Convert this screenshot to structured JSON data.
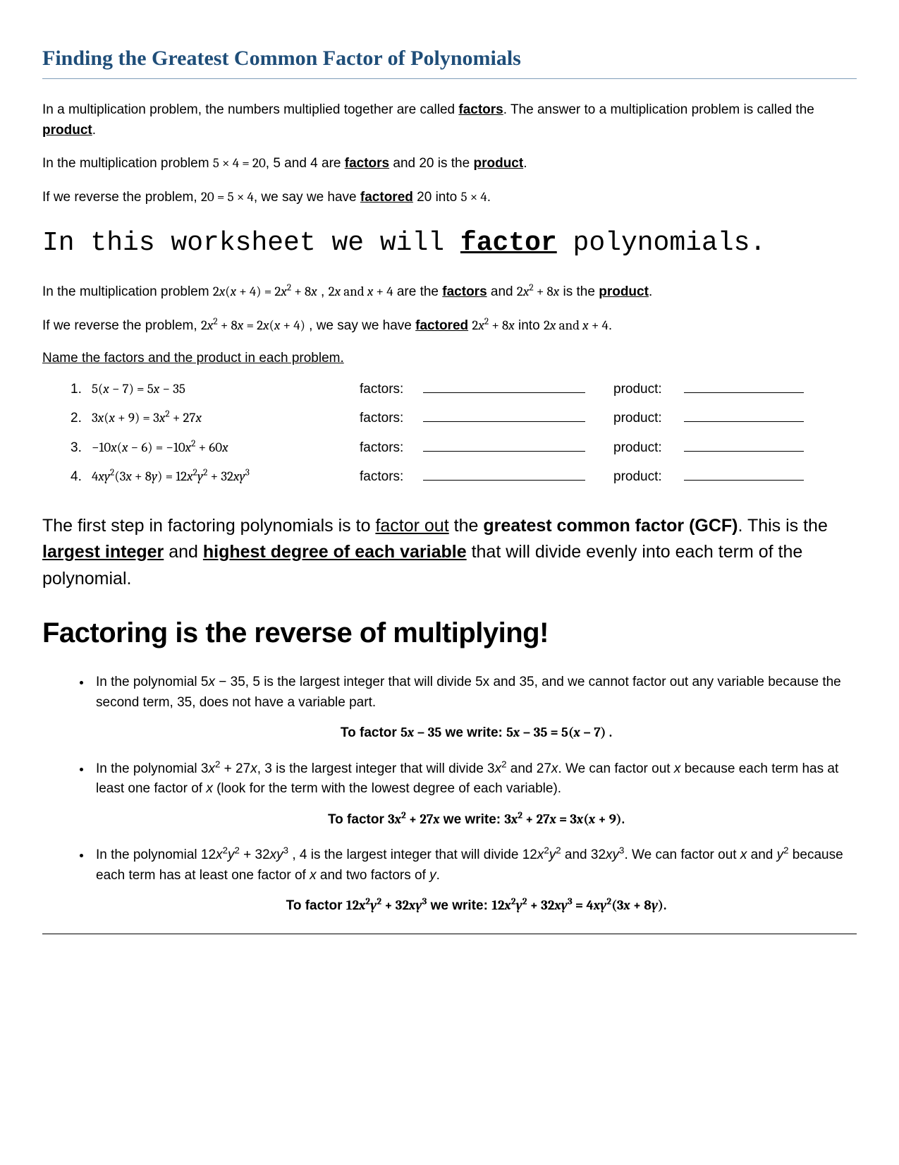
{
  "title": "Finding the Greatest Common Factor of Polynomials",
  "colors": {
    "title": "#1f4e79",
    "title_rule": "#7f9db9",
    "text": "#000000",
    "bg": "#ffffff"
  },
  "typography": {
    "title_font": "Comic Sans MS",
    "title_size_pt": 22,
    "body_font": "Century Gothic",
    "body_size_pt": 14,
    "big_line_font": "American Typewriter",
    "big_line_size_pt": 28,
    "shout_font": "Arial",
    "shout_size_pt": 30
  },
  "p1_a": "In a multiplication problem, the numbers multiplied together are called ",
  "p1_factors": "factors",
  "p1_b": ".  The answer to a multiplication problem is called the ",
  "p1_product": "product",
  "p1_c": ".",
  "p2_a": "In the multiplication problem  ",
  "p2_math": "5 × 4 = 20",
  "p2_b": ", 5 and 4 are ",
  "p2_factors": "factors",
  "p2_c": " and 20 is the ",
  "p2_product": "product",
  "p2_d": ".",
  "p3_a": "If we reverse the problem, ",
  "p3_math": "20 = 5 × 4",
  "p3_b": ", we say we have ",
  "p3_factored": "factored",
  "p3_c": " 20 into ",
  "p3_math2": "5 × 4",
  "p3_d": ".",
  "bigline_a": "In this worksheet we will ",
  "bigline_b": "factor",
  "bigline_c": " polynomials.",
  "p4_a": "In the multiplication problem  ",
  "p4_b": " , ",
  "p4_c": " are the ",
  "p4_factors": "factors",
  "p4_d": " and ",
  "p4_e": " is the ",
  "p4_product": "product",
  "p4_f": ".",
  "p5_a": "If we reverse the problem,  ",
  "p5_b": " , we say we have ",
  "p5_factored": "factored",
  "p5_c": " into  ",
  "p5_d": ".",
  "instruction": "Name the factors and the product in each problem.",
  "labels": {
    "factors": "factors:",
    "product": "product:"
  },
  "problems": [
    {
      "n": "1.",
      "expr_html": "5(<i>x</i> − 7) = 5<i>x</i> − 35"
    },
    {
      "n": "2.",
      "expr_html": "3<i>x</i>(<i>x</i> + 9) = 3<i>x</i><sup>2</sup> + 27<i>x</i>"
    },
    {
      "n": "3.",
      "expr_html": "−10<i>x</i>(<i>x</i> − 6) = −10<i>x</i><sup>2</sup> + 60<i>x</i>"
    },
    {
      "n": "4.",
      "expr_html": "4<i>x</i><i>y</i><sup>2</sup>(3<i>x</i> + 8<i>y</i>) = 12<i>x</i><sup>2</sup><i>y</i><sup>2</sup> + 32<i>x</i><i>y</i><sup>3</sup>"
    }
  ],
  "section_a": "The first step in factoring polynomials is to ",
  "section_b": "factor out",
  "section_c": " the ",
  "section_d": "greatest common factor (GCF)",
  "section_e": ".  This is the ",
  "section_f": "largest integer",
  "section_g": " and ",
  "section_h": "highest degree of each variable",
  "section_i": " that will divide evenly into each term of the polynomial.",
  "shout": "Factoring is the reverse of multiplying!",
  "bullets": [
    {
      "text_html": "In the polynomial 5<i>x</i> − 35, 5 is the largest integer that will divide 5x and 35, and we cannot factor out any variable because the second term, 35, does not have a variable part.",
      "factor_lead": "To factor ",
      "factor_expr": "5<i>x</i> − 35",
      "write": " we write:    ",
      "result": "5<i>x</i> − 35 = 5(<i>x</i> − 7) ."
    },
    {
      "text_html": "In the polynomial  3<i>x</i><sup>2</sup> + 27<i>x</i>, 3 is the largest integer that will divide 3<i>x</i><sup>2</sup> and 27<i>x</i>.  We can factor out <i>x</i> because each term has at least one factor of <i>x</i> (look for the term with the lowest degree of each variable).",
      "factor_lead": "To factor ",
      "factor_expr": "3<i>x</i><sup>2</sup> + 27<i>x</i>",
      "write": " we write:   ",
      "result": "3<i>x</i><sup>2</sup> + 27<i>x</i> = 3<i>x</i>(<i>x</i> + 9)."
    },
    {
      "text_html": "In the polynomial 12<i>x</i><sup>2</sup><i>y</i><sup>2</sup> + 32<i>x</i><i>y</i><sup>3</sup>  , 4 is the largest integer that will divide 12<i>x</i><sup>2</sup><i>y</i><sup>2</sup> and 32<i>x</i><i>y</i><sup>3</sup>.  We can factor out <i>x</i> and <i>y</i><sup>2</sup> because each term has at least one factor of <i>x</i> and two factors of <i>y</i>.",
      "factor_lead": "To factor ",
      "factor_expr": "12<i>x</i><sup>2</sup><i>y</i><sup>2</sup> + 32<i>x</i><i>y</i><sup>3</sup>",
      "write": " we write:  ",
      "result": "12<i>x</i><sup>2</sup><i>y</i><sup>2</sup> + 32<i>x</i><i>y</i><sup>3</sup> = 4<i>x</i><i>y</i><sup>2</sup>(3<i>x</i> + 8<i>y</i>)."
    }
  ]
}
